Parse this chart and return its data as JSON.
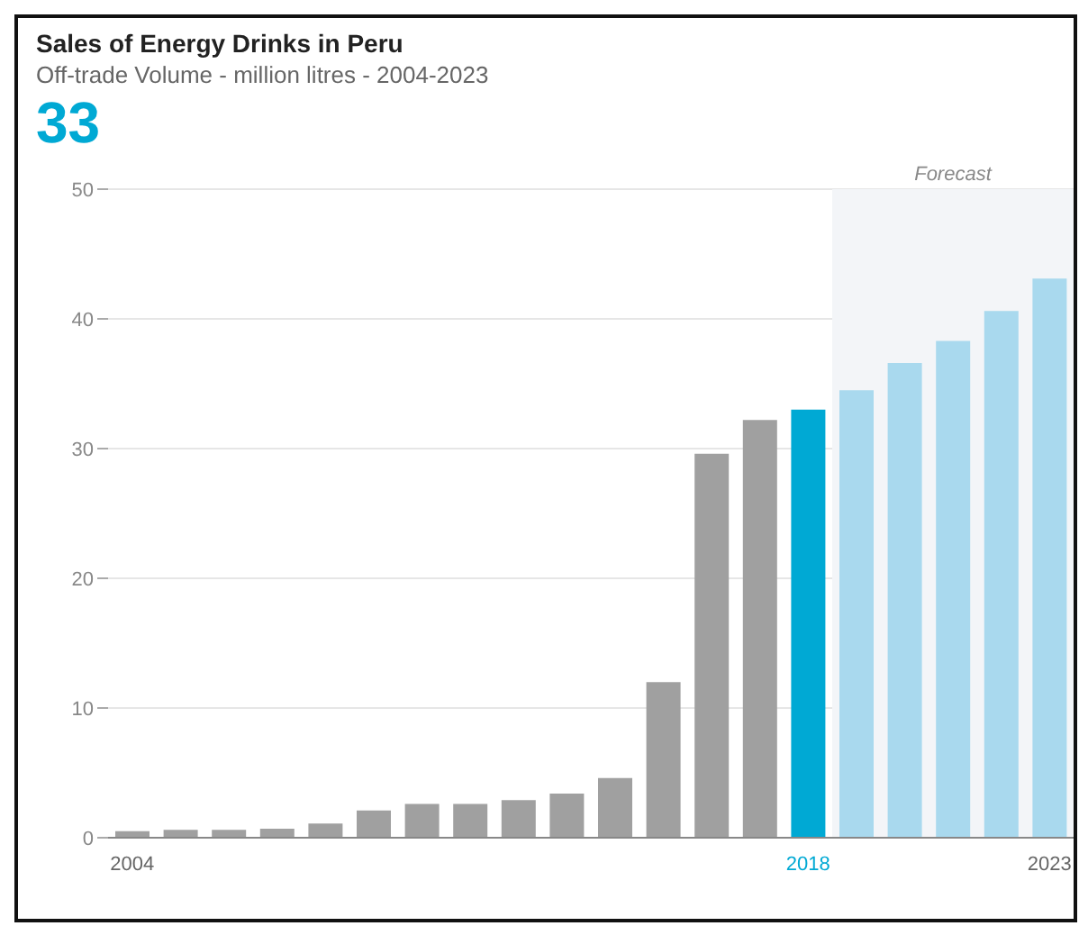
{
  "chart_data": {
    "type": "bar",
    "title": "Sales of Energy Drinks in Peru",
    "subtitle": "Off-trade Volume - million litres - 2004-2023",
    "annotations": [
      "33"
    ],
    "x": [
      2004,
      2005,
      2006,
      2007,
      2008,
      2009,
      2010,
      2011,
      2012,
      2013,
      2014,
      2015,
      2016,
      2017,
      2018,
      2019,
      2020,
      2021,
      2022,
      2023
    ],
    "values": [
      0.5,
      0.6,
      0.6,
      0.7,
      1.1,
      2.1,
      2.6,
      2.6,
      2.9,
      3.4,
      4.6,
      12,
      29.6,
      32.2,
      33,
      34.5,
      36.6,
      38.3,
      40.6,
      43.1
    ],
    "colors": [
      "#a0a0a0",
      "#a0a0a0",
      "#a0a0a0",
      "#a0a0a0",
      "#a0a0a0",
      "#a0a0a0",
      "#a0a0a0",
      "#a0a0a0",
      "#a0a0a0",
      "#a0a0a0",
      "#a0a0a0",
      "#a0a0a0",
      "#a0a0a0",
      "#a0a0a0",
      "#00a9d4",
      "#a9d9ee",
      "#a9d9ee",
      "#a9d9ee",
      "#a9d9ee",
      "#a9d9ee"
    ],
    "xlim": [
      2003.5,
      2023.5
    ],
    "xticks": [
      2004,
      2018,
      2023
    ],
    "ylim": [
      0,
      50
    ],
    "yticks": [
      0,
      10,
      20,
      30,
      40,
      50
    ],
    "bands": [
      {
        "axis": "x",
        "from": 2018.5,
        "to": 2023.5,
        "label": "Forecast",
        "color": "#f3f5f8"
      }
    ],
    "grid": "y",
    "legend": false
  }
}
